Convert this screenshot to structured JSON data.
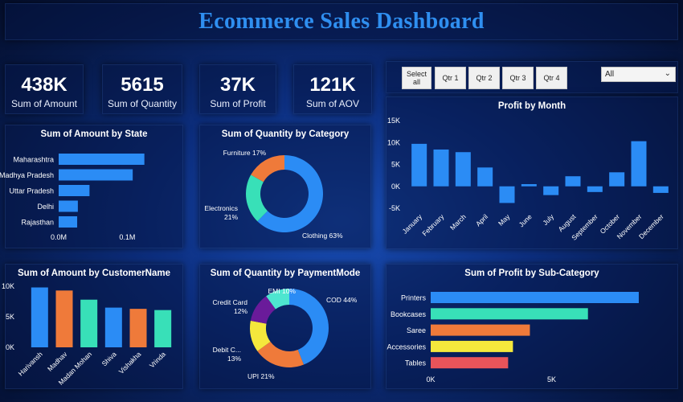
{
  "title": "Ecommerce Sales Dashboard",
  "kpis": [
    {
      "value": "438K",
      "label": "Sum of Amount"
    },
    {
      "value": "5615",
      "label": "Sum of Quantity"
    },
    {
      "value": "37K",
      "label": "Sum of Profit"
    },
    {
      "value": "121K",
      "label": "Sum of AOV"
    }
  ],
  "slicer": {
    "buttons": [
      "Select all",
      "Qtr 1",
      "Qtr 2",
      "Qtr 3",
      "Qtr 4"
    ],
    "dropdown_value": "All"
  },
  "colors": {
    "blue": "#2b8cf5",
    "orange": "#ef7a3a",
    "teal": "#38e0b8",
    "yellow": "#f5e83c",
    "purple": "#6a1b9a",
    "red": "#e9545a",
    "cyan": "#4ee6d0"
  },
  "chart_data": [
    {
      "id": "amount_by_state",
      "type": "bar",
      "orientation": "horizontal",
      "title": "Sum of Amount by State",
      "categories": [
        "Maharashtra",
        "Madhya Pradesh",
        "Uttar Pradesh",
        "Delhi",
        "Rajasthan"
      ],
      "values": [
        0.125,
        0.108,
        0.045,
        0.028,
        0.027
      ],
      "xlim": [
        0,
        0.15
      ],
      "ticks": [
        "0.0M",
        "0.1M"
      ],
      "tick_values": [
        0,
        0.1
      ]
    },
    {
      "id": "quantity_by_category",
      "type": "pie",
      "donut": true,
      "title": "Sum of Quantity by Category",
      "slices": [
        {
          "label": "Clothing 63%",
          "value": 63,
          "color": "#2b8cf5"
        },
        {
          "label": "Electronics 21%",
          "value": 21,
          "color": "#38e0b8"
        },
        {
          "label": "Furniture 17%",
          "value": 17,
          "color": "#ef7a3a"
        }
      ]
    },
    {
      "id": "profit_by_month",
      "type": "bar",
      "title": "Profit by Month",
      "categories": [
        "January",
        "February",
        "March",
        "April",
        "May",
        "June",
        "July",
        "August",
        "September",
        "October",
        "November",
        "December"
      ],
      "values": [
        9.7,
        8.4,
        7.8,
        4.3,
        -3.8,
        0.5,
        -2.0,
        2.3,
        -1.3,
        3.2,
        10.3,
        -1.5
      ],
      "ylim": [
        -5,
        15
      ],
      "yticks": [
        "-5K",
        "0K",
        "5K",
        "10K",
        "15K"
      ],
      "ytick_values": [
        -5,
        0,
        5,
        10,
        15
      ]
    },
    {
      "id": "amount_by_customer",
      "type": "bar",
      "title": "Sum of Amount by CustomerName",
      "categories": [
        "Harivansh",
        "Madhav",
        "Madan Mohan",
        "Shiva",
        "Vishakha",
        "Vrinda"
      ],
      "values": [
        9.8,
        9.3,
        7.8,
        6.5,
        6.3,
        6.1
      ],
      "colors": [
        "#2b8cf5",
        "#ef7a3a",
        "#38e0b8",
        "#2b8cf5",
        "#ef7a3a",
        "#38e0b8"
      ],
      "ylim": [
        0,
        10
      ],
      "yticks": [
        "0K",
        "5K",
        "10K"
      ],
      "ytick_values": [
        0,
        5,
        10
      ]
    },
    {
      "id": "quantity_by_paymentmode",
      "type": "pie",
      "donut": true,
      "title": "Sum of Quantity by PaymentMode",
      "slices": [
        {
          "label": "COD 44%",
          "value": 44,
          "color": "#2b8cf5"
        },
        {
          "label": "UPI 21%",
          "value": 21,
          "color": "#ef7a3a"
        },
        {
          "label": "Debit C... 13%",
          "value": 13,
          "color": "#f5e83c"
        },
        {
          "label": "Credit Card 12%",
          "value": 12,
          "color": "#6a1b9a"
        },
        {
          "label": "EMI 10%",
          "value": 10,
          "color": "#4ee6d0"
        }
      ]
    },
    {
      "id": "profit_by_subcategory",
      "type": "bar",
      "orientation": "horizontal",
      "title": "Sum of Profit by Sub-Category",
      "categories": [
        "Printers",
        "Bookcases",
        "Saree",
        "Accessories",
        "Tables"
      ],
      "values": [
        8.6,
        6.5,
        4.1,
        3.4,
        3.2
      ],
      "colors": [
        "#2b8cf5",
        "#38e0b8",
        "#ef7a3a",
        "#f5e83c",
        "#e9545a"
      ],
      "xlim": [
        0,
        9
      ],
      "ticks": [
        "0K",
        "5K"
      ],
      "tick_values": [
        0,
        5
      ]
    }
  ]
}
